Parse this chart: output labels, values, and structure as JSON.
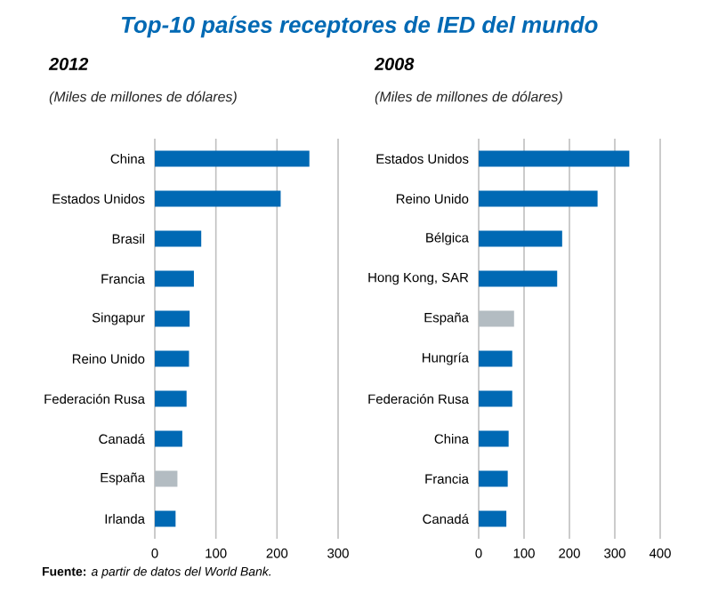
{
  "chart_data": [
    {
      "type": "bar",
      "orientation": "horizontal",
      "title": "Top-10 países receptores de IED del mundo",
      "subtitle": "2012",
      "xlabel": "(Miles de millones de dólares)",
      "categories": [
        "China",
        "Estados Unidos",
        "Brasil",
        "Francia",
        "Singapur",
        "Reino Unido",
        "Federación Rusa",
        "Canadá",
        "España",
        "Irlanda"
      ],
      "values": [
        253,
        206,
        76,
        64,
        57,
        56,
        52,
        45,
        37,
        34
      ],
      "colors": [
        "#0069b4",
        "#0069b4",
        "#0069b4",
        "#0069b4",
        "#0069b4",
        "#0069b4",
        "#0069b4",
        "#0069b4",
        "#b3bcc2",
        "#0069b4"
      ],
      "xlim": [
        0,
        300
      ],
      "xticks": [
        0,
        100,
        200,
        300
      ],
      "grid": "x",
      "annotations": [
        "**Fuente:** *a partir de datos del World Bank.*"
      ]
    },
    {
      "type": "bar",
      "orientation": "horizontal",
      "subtitle": "2008",
      "xlabel": "(Miles de millones de dólares)",
      "categories": [
        "Estados Unidos",
        "Reino Unido",
        "Bélgica",
        "Hong Kong, SAR",
        "España",
        "Hungría",
        "Federación Rusa",
        "China",
        "Francia",
        "Canadá"
      ],
      "values": [
        332,
        262,
        184,
        173,
        78,
        74,
        74,
        66,
        64,
        61
      ],
      "colors": [
        "#0069b4",
        "#0069b4",
        "#0069b4",
        "#0069b4",
        "#b3bcc2",
        "#0069b4",
        "#0069b4",
        "#0069b4",
        "#0069b4",
        "#0069b4"
      ],
      "xlim": [
        0,
        400
      ],
      "xticks": [
        0,
        100,
        200,
        300,
        400
      ],
      "grid": "x"
    }
  ]
}
